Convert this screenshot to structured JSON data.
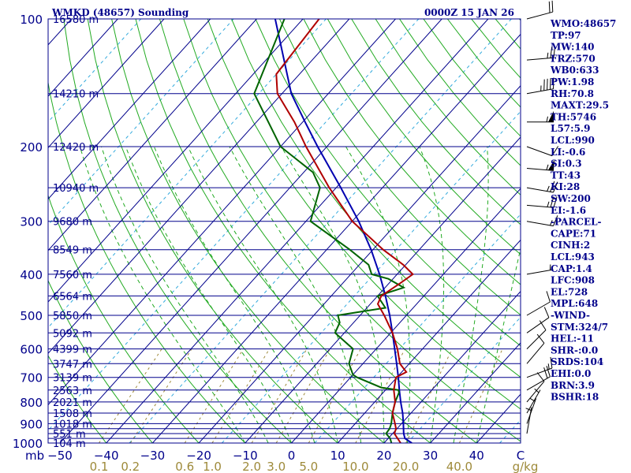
{
  "chart_data": {
    "type": "skew-t",
    "title_left": "WMKD (48657) Sounding",
    "title_right": "0000Z 15 JAN 26",
    "p_axis_label": "mb",
    "pressure_ticks": [
      100,
      200,
      300,
      400,
      500,
      600,
      700,
      800,
      900,
      1000
    ],
    "isobars": [
      100,
      150,
      200,
      250,
      300,
      350,
      400,
      450,
      500,
      550,
      600,
      650,
      700,
      750,
      800,
      850,
      900,
      925,
      950,
      975,
      1000
    ],
    "temp_axis": [
      "−50",
      "−40",
      "−30",
      "−20",
      "−10",
      "0",
      "10",
      "20",
      "30",
      "40",
      "C"
    ],
    "temp_ticks": [
      -50,
      -40,
      -30,
      -20,
      -10,
      0,
      10,
      20,
      30,
      40
    ],
    "temp_unit": "C",
    "mixing_ratio_axis": [
      "0.1",
      "0.2",
      "0.6",
      "1.0",
      "2.0",
      "3.0",
      "5.0",
      "10.0",
      "20.0",
      "40.0",
      "g/kg"
    ],
    "mixing_ratios": [
      0.1,
      0.2,
      0.6,
      1.0,
      2.0,
      3.0,
      5.0,
      10.0,
      20.0,
      40.0
    ],
    "mixing_ratio_unit": "g/kg",
    "heights": [
      {
        "p": 100,
        "label": "16580 m"
      },
      {
        "p": 150,
        "label": "14210 m"
      },
      {
        "p": 200,
        "label": "12420 m"
      },
      {
        "p": 250,
        "label": "10940 m"
      },
      {
        "p": 300,
        "label": "9680 m"
      },
      {
        "p": 350,
        "label": "8549 m"
      },
      {
        "p": 400,
        "label": "7560 m"
      },
      {
        "p": 450,
        "label": "6564 m"
      },
      {
        "p": 500,
        "label": "5850 m"
      },
      {
        "p": 550,
        "label": "5092 m"
      },
      {
        "p": 600,
        "label": "4399 m"
      },
      {
        "p": 650,
        "label": "3747 m"
      },
      {
        "p": 700,
        "label": "3139 m"
      },
      {
        "p": 750,
        "label": "2563 m"
      },
      {
        "p": 800,
        "label": "2021 m"
      },
      {
        "p": 850,
        "label": "1508 m"
      },
      {
        "p": 900,
        "label": "1018 m"
      },
      {
        "p": 950,
        "label": "551 m"
      },
      {
        "p": 1000,
        "label": "104 m"
      }
    ],
    "temperature": {
      "name": "Temperature",
      "color": "#b00000",
      "p": [
        1000,
        975,
        950,
        925,
        900,
        850,
        800,
        750,
        700,
        680,
        650,
        600,
        550,
        500,
        470,
        450,
        420,
        400,
        380,
        350,
        300,
        250,
        200,
        175,
        150,
        135,
        100
      ],
      "t": [
        23.6,
        22.0,
        20.4,
        19.8,
        18.6,
        16.0,
        14.4,
        11.8,
        9.8,
        11.0,
        8.0,
        4.6,
        0.4,
        -4.8,
        -8.4,
        -9.2,
        -7.6,
        -6.6,
        -10.5,
        -17.8,
        -30.0,
        -41.5,
        -54.5,
        -61.8,
        -71.0,
        -75.0,
        -76.5
      ]
    },
    "dewpoint": {
      "name": "Dewpoint",
      "color": "#006400",
      "p": [
        1000,
        975,
        950,
        925,
        900,
        850,
        800,
        760,
        750,
        740,
        700,
        690,
        650,
        600,
        550,
        520,
        500,
        480,
        450,
        430,
        410,
        400,
        380,
        350,
        300,
        250,
        230,
        200,
        150,
        100
      ],
      "t": [
        21.6,
        20.4,
        18.6,
        18.4,
        17.8,
        16.0,
        14.4,
        13.4,
        12.8,
        8.6,
        1.4,
        0.0,
        -3.0,
        -5.0,
        -12.0,
        -13.0,
        -14.8,
        -6.0,
        -10.0,
        -6.0,
        -11.0,
        -15.5,
        -18.0,
        -25.0,
        -39.0,
        -43.5,
        -48.0,
        -60.0,
        -76.0,
        -84.0
      ]
    },
    "parcel": {
      "name": "Parcel",
      "color": "#0000b0",
      "p": [
        1000,
        975,
        950,
        900,
        850,
        800,
        750,
        700,
        650,
        600,
        550,
        500,
        450,
        400,
        350,
        300,
        250,
        200,
        175,
        150,
        100
      ],
      "t": [
        26.0,
        23.6,
        22.4,
        20.4,
        18.2,
        15.6,
        13.0,
        10.3,
        7.3,
        4.0,
        0.4,
        -3.6,
        -8.3,
        -13.8,
        -20.4,
        -28.6,
        -39.0,
        -52.0,
        -59.5,
        -68.0,
        -86.0
      ]
    },
    "wind_barbs": [
      {
        "p": 100,
        "dir": 75,
        "spd": 20
      },
      {
        "p": 125,
        "dir": 85,
        "spd": 25
      },
      {
        "p": 150,
        "dir": 80,
        "spd": 45
      },
      {
        "p": 175,
        "dir": 90,
        "spd": 55
      },
      {
        "p": 200,
        "dir": 110,
        "spd": 10
      },
      {
        "p": 225,
        "dir": 95,
        "spd": 55
      },
      {
        "p": 250,
        "dir": 100,
        "spd": 25
      },
      {
        "p": 275,
        "dir": 95,
        "spd": 25
      },
      {
        "p": 300,
        "dir": 100,
        "spd": 15
      },
      {
        "p": 400,
        "dir": 80,
        "spd": 5
      },
      {
        "p": 500,
        "dir": 60,
        "spd": 10
      },
      {
        "p": 550,
        "dir": 55,
        "spd": 10
      },
      {
        "p": 600,
        "dir": 45,
        "spd": 10
      },
      {
        "p": 650,
        "dir": 40,
        "spd": 10
      },
      {
        "p": 700,
        "dir": 70,
        "spd": 15
      },
      {
        "p": 750,
        "dir": 60,
        "spd": 20
      },
      {
        "p": 800,
        "dir": 40,
        "spd": 10
      },
      {
        "p": 850,
        "dir": 30,
        "spd": 5
      },
      {
        "p": 900,
        "dir": 20,
        "spd": 5
      },
      {
        "p": 950,
        "dir": 10,
        "spd": 5
      }
    ],
    "indices": [
      "WMO:48657",
      "TP:97",
      "MW:140",
      "FRZ:570",
      "WB0:633",
      "PW:1.98",
      "RH:70.8",
      "MAXT:29.5",
      "TH:5746",
      "L57:5.9",
      "LCL:990",
      "LI:-0.6",
      "SI:0.3",
      "TT:43",
      "KI:28",
      "SW:200",
      "EI:-1.6",
      "-PARCEL-",
      "CAPE:71",
      "CINH:2",
      "LCL:943",
      "CAP:1.4",
      "LFC:908",
      "EL:728",
      "MPL:648",
      "-WIND-",
      "STM:324/7",
      "HEL:-11",
      "SHR-:0.0",
      "SRDS:104",
      "EHI:0.0",
      "BRN:3.9",
      "BSHR:18"
    ],
    "colors": {
      "frame": "#00008b",
      "isobar": "#00008b",
      "isotherm": "#00008b",
      "dry_adiabat": "#22aa22",
      "moist_adiabat": "#22aa22",
      "mixing_ratio": "#9e8a3a",
      "isotherm_dashed": "#33aadd",
      "barb": "#000000",
      "background": "#ffffff"
    }
  }
}
